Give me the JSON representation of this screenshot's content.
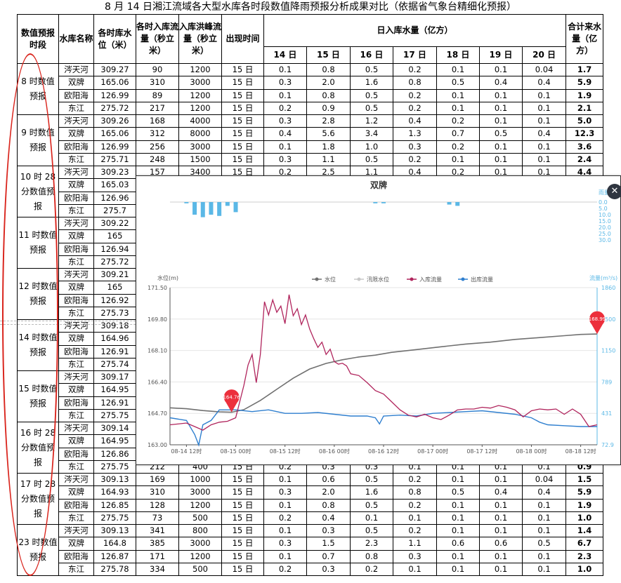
{
  "title": "8 月 14 日湘江流域各大型水库各时段数值降雨预报分析成果对比（依据省气象台精细化预报）",
  "headers": {
    "period": "数值预报时段",
    "name": "水库名称",
    "level": "各时库水位（米）",
    "inflow": "各时入库流量（秒立米）",
    "peak": "入库洪峰流量（秒立米）",
    "time": "出现时间",
    "daily": "日入库水量（亿方）",
    "days": [
      "14 日",
      "15 日",
      "16 日",
      "17 日",
      "18 日",
      "19 日",
      "20 日"
    ],
    "total": "合计来水量（亿方）"
  },
  "groups": [
    {
      "period": "8 时数值预报",
      "rows": [
        [
          "涔天河",
          "309.27",
          "90",
          "1200",
          "15 日",
          "0.1",
          "0.8",
          "0.5",
          "0.2",
          "0.1",
          "0.1",
          "0.04",
          "1.7"
        ],
        [
          "双牌",
          "165.06",
          "310",
          "3000",
          "15 日",
          "0.3",
          "2.0",
          "1.6",
          "0.8",
          "0.5",
          "0.4",
          "0.4",
          "5.9"
        ],
        [
          "欧阳海",
          "126.99",
          "89",
          "1200",
          "15 日",
          "0.1",
          "0.8",
          "0.5",
          "0.2",
          "0.1",
          "0.1",
          "0.1",
          "1.9"
        ],
        [
          "东江",
          "275.72",
          "217",
          "1200",
          "15 日",
          "0.2",
          "0.9",
          "0.5",
          "0.2",
          "0.1",
          "0.1",
          "0.1",
          "2.1"
        ]
      ]
    },
    {
      "period": "9 时数值预报",
      "rows": [
        [
          "涔天河",
          "309.26",
          "168",
          "4000",
          "15 日",
          "0.3",
          "2.8",
          "1.2",
          "0.4",
          "0.2",
          "0.1",
          "0.1",
          "5.0"
        ],
        [
          "双牌",
          "165.06",
          "312",
          "8000",
          "15 日",
          "0.4",
          "5.6",
          "3.4",
          "1.3",
          "0.7",
          "0.5",
          "0.4",
          "12.3"
        ],
        [
          "欧阳海",
          "126.99",
          "256",
          "3000",
          "15 日",
          "0.1",
          "1.8",
          "1.0",
          "0.3",
          "0.2",
          "0.1",
          "0.1",
          "3.6"
        ],
        [
          "东江",
          "275.71",
          "248",
          "1500",
          "15 日",
          "0.3",
          "1.1",
          "0.5",
          "0.2",
          "0.1",
          "0.1",
          "0.1",
          "2.4"
        ]
      ]
    },
    {
      "period": "10 时 28 分数值预报",
      "rows": [
        [
          "涔天河",
          "309.23",
          "157",
          "3400",
          "15 日",
          "0.2",
          "2.5",
          "1.1",
          "0.4",
          "0.2",
          "0.1",
          "0.1",
          "4.4"
        ],
        [
          "双牌",
          "165.03",
          "",
          "",
          "",
          "",
          "",
          "",
          "",
          "",
          "",
          "",
          ""
        ],
        [
          "欧阳海",
          "126.96",
          "",
          "",
          "",
          "",
          "",
          "",
          "",
          "",
          "",
          "",
          ""
        ],
        [
          "东江",
          "275.7",
          "",
          "",
          "",
          "",
          "",
          "",
          "",
          "",
          "",
          "",
          ""
        ]
      ]
    },
    {
      "period": "11 时数值预报",
      "rows": [
        [
          "涔天河",
          "309.22",
          "",
          "",
          "",
          "",
          "",
          "",
          "",
          "",
          "",
          "",
          ""
        ],
        [
          "双牌",
          "165",
          "",
          "",
          "",
          "",
          "",
          "",
          "",
          "",
          "",
          "",
          ""
        ],
        [
          "欧阳海",
          "126.94",
          "",
          "",
          "",
          "",
          "",
          "",
          "",
          "",
          "",
          "",
          ""
        ],
        [
          "东江",
          "275.72",
          "",
          "",
          "",
          "",
          "",
          "",
          "",
          "",
          "",
          "",
          ""
        ]
      ]
    },
    {
      "period": "12 时数值预报",
      "rows": [
        [
          "涔天河",
          "309.21",
          "",
          "",
          "",
          "",
          "",
          "",
          "",
          "",
          "",
          "",
          ""
        ],
        [
          "双牌",
          "165",
          "",
          "",
          "",
          "",
          "",
          "",
          "",
          "",
          "",
          "",
          ""
        ],
        [
          "欧阳海",
          "126.92",
          "",
          "",
          "",
          "",
          "",
          "",
          "",
          "",
          "",
          "",
          ""
        ],
        [
          "东江",
          "275.73",
          "",
          "",
          "",
          "",
          "",
          "",
          "",
          "",
          "",
          "",
          ""
        ]
      ]
    },
    {
      "period": "14 时数值预报",
      "rows": [
        [
          "涔天河",
          "309.18",
          "",
          "",
          "",
          "",
          "",
          "",
          "",
          "",
          "",
          "",
          ""
        ],
        [
          "双牌",
          "164.96",
          "",
          "",
          "",
          "",
          "",
          "",
          "",
          "",
          "",
          "",
          ""
        ],
        [
          "欧阳海",
          "126.91",
          "",
          "",
          "",
          "",
          "",
          "",
          "",
          "",
          "",
          "",
          ""
        ],
        [
          "东江",
          "275.74",
          "",
          "",
          "",
          "",
          "",
          "",
          "",
          "",
          "",
          "",
          ""
        ]
      ]
    },
    {
      "period": "15 时数值预报",
      "rows": [
        [
          "涔天河",
          "309.17",
          "",
          "",
          "",
          "",
          "",
          "",
          "",
          "",
          "",
          "",
          ""
        ],
        [
          "双牌",
          "164.95",
          "",
          "",
          "",
          "",
          "",
          "",
          "",
          "",
          "",
          "",
          ""
        ],
        [
          "欧阳海",
          "126.91",
          "",
          "",
          "",
          "",
          "",
          "",
          "",
          "",
          "",
          "",
          ""
        ],
        [
          "东江",
          "275.75",
          "",
          "",
          "",
          "",
          "",
          "",
          "",
          "",
          "",
          "",
          ""
        ]
      ]
    },
    {
      "period": "16 时 28 分数值预报",
      "rows": [
        [
          "涔天河",
          "309.14",
          "",
          "",
          "",
          "",
          "",
          "",
          "",
          "",
          "",
          "",
          ""
        ],
        [
          "双牌",
          "164.95",
          "",
          "",
          "",
          "",
          "",
          "",
          "",
          "",
          "",
          "",
          ""
        ],
        [
          "欧阳海",
          "126.86",
          "",
          "",
          "",
          "",
          "",
          "",
          "",
          "",
          "",
          "",
          ""
        ],
        [
          "东江",
          "275.75",
          "212",
          "400",
          "15 日",
          "0.2",
          "0.3",
          "0.3",
          "0.1",
          "0.1",
          "0.1",
          "0.1",
          "0.9"
        ]
      ]
    },
    {
      "period": "17 时 28 分数值预报",
      "rows": [
        [
          "涔天河",
          "309.13",
          "169",
          "1000",
          "15 日",
          "0.1",
          "0.6",
          "0.5",
          "0.2",
          "0.1",
          "0.1",
          "0.04",
          "1.5"
        ],
        [
          "双牌",
          "164.93",
          "310",
          "3000",
          "15 日",
          "0.3",
          "2.0",
          "1.6",
          "0.8",
          "0.5",
          "0.4",
          "0.4",
          "5.9"
        ],
        [
          "欧阳海",
          "126.85",
          "128",
          "1200",
          "15 日",
          "0.1",
          "0.8",
          "0.5",
          "0.2",
          "0.1",
          "0.1",
          "0.1",
          "1.9"
        ],
        [
          "东江",
          "275.75",
          "73",
          "500",
          "15 日",
          "0.2",
          "0.4",
          "0.1",
          "0.1",
          "0.1",
          "0.1",
          "0.1",
          "1.0"
        ]
      ]
    },
    {
      "period": "23 时数值预报",
      "rows": [
        [
          "涔天河",
          "309.13",
          "341",
          "800",
          "15 日",
          "0.1",
          "0.3",
          "0.5",
          "0.2",
          "0.1",
          "0.1",
          "0.1",
          "1.4"
        ],
        [
          "双牌",
          "164.8",
          "385",
          "3000",
          "15 日",
          "0.3",
          "1.5",
          "2.3",
          "1.1",
          "0.6",
          "0.6",
          "0.5",
          "6.7"
        ],
        [
          "欧阳海",
          "126.87",
          "171",
          "1200",
          "15 日",
          "0.1",
          "0.7",
          "0.8",
          "0.3",
          "0.1",
          "0.1",
          "0.1",
          "2.3"
        ],
        [
          "东江",
          "275.78",
          "334",
          "500",
          "15 日",
          "0.2",
          "0.3",
          "0.2",
          "0.1",
          "0.1",
          "0.1",
          "0.1",
          "1.0"
        ]
      ]
    }
  ],
  "popup": {
    "close_icon": "close-icon",
    "chart_data": {
      "type": "line",
      "title": "双牌",
      "rain_axis_label": "雨量",
      "ylabel_left": "水位(m)",
      "ylabel_right": "流量(m³/s)",
      "legend": [
        "水位",
        "汛限水位",
        "入库流量",
        "出库流量"
      ],
      "legend_placement": "top",
      "grid": true,
      "colors": {
        "level": "#707070",
        "flood_limit": "#c8c8c8",
        "inflow": "#b0245c",
        "outflow": "#2f7fcf",
        "rain": "#5bb8e6",
        "marker": "#ec2f3c"
      },
      "x_ticks": [
        "08-14 12时",
        "08-15 00时",
        "08-15 12时",
        "08-16 00时",
        "08-16 12时",
        "08-17 00时",
        "08-17 12时",
        "08-18 00时",
        "08-18 12时"
      ],
      "x_range_hours": [
        -4,
        100
      ],
      "y_left_ticks": [
        "163.00",
        "164.70",
        "166.40",
        "168.10",
        "169.80",
        "171.50"
      ],
      "y_left_range": [
        163.0,
        171.5
      ],
      "y_right_ticks": [
        "72.9",
        "431",
        "789",
        "1150",
        "1500",
        "1860"
      ],
      "y_right_range": [
        72.9,
        1860
      ],
      "rain_ticks": [
        "0.0",
        "5.0",
        "10.0",
        "15.0",
        "20.0",
        "25.0",
        "30.0"
      ],
      "rain_range": [
        0,
        30
      ],
      "markers": [
        {
          "label": "164.76",
          "t": 11,
          "value": 164.76
        },
        {
          "label": "168.99",
          "t": 100,
          "value": 168.99
        }
      ],
      "rain": [
        [
          0,
          1
        ],
        [
          2,
          10
        ],
        [
          4,
          12
        ],
        [
          6,
          10
        ],
        [
          8,
          11
        ],
        [
          10,
          3
        ],
        [
          12,
          8
        ],
        [
          46,
          1
        ],
        [
          48,
          1
        ],
        [
          64,
          2
        ],
        [
          66,
          3
        ]
      ],
      "level": [
        [
          -4,
          165.0
        ],
        [
          0,
          164.95
        ],
        [
          4,
          164.85
        ],
        [
          8,
          164.78
        ],
        [
          11,
          164.76
        ],
        [
          14,
          164.9
        ],
        [
          18,
          165.4
        ],
        [
          22,
          166.0
        ],
        [
          26,
          166.6
        ],
        [
          30,
          167.1
        ],
        [
          34,
          167.4
        ],
        [
          38,
          167.6
        ],
        [
          42,
          167.75
        ],
        [
          46,
          167.85
        ],
        [
          50,
          168.0
        ],
        [
          56,
          168.15
        ],
        [
          62,
          168.3
        ],
        [
          68,
          168.45
        ],
        [
          74,
          168.55
        ],
        [
          80,
          168.7
        ],
        [
          86,
          168.8
        ],
        [
          92,
          168.9
        ],
        [
          96,
          168.97
        ],
        [
          100,
          168.99
        ]
      ],
      "inflow": [
        [
          -4,
          300
        ],
        [
          0,
          320
        ],
        [
          2,
          280
        ],
        [
          4,
          240
        ],
        [
          6,
          300
        ],
        [
          8,
          330
        ],
        [
          10,
          340
        ],
        [
          12,
          380
        ],
        [
          14,
          750
        ],
        [
          15,
          980
        ],
        [
          16,
          1100
        ],
        [
          17,
          780
        ],
        [
          18,
          1100
        ],
        [
          19,
          1700
        ],
        [
          20,
          1550
        ],
        [
          21,
          1720
        ],
        [
          22,
          1580
        ],
        [
          23,
          1650
        ],
        [
          24,
          1450
        ],
        [
          25,
          1780
        ],
        [
          26,
          1540
        ],
        [
          27,
          1620
        ],
        [
          28,
          1440
        ],
        [
          29,
          1550
        ],
        [
          30,
          1390
        ],
        [
          31,
          1280
        ],
        [
          32,
          1180
        ],
        [
          33,
          1240
        ],
        [
          34,
          1100
        ],
        [
          35,
          1160
        ],
        [
          36,
          1020
        ],
        [
          37,
          990
        ],
        [
          38,
          1000
        ],
        [
          39,
          970
        ],
        [
          40,
          880
        ],
        [
          42,
          860
        ],
        [
          44,
          780
        ],
        [
          46,
          690
        ],
        [
          48,
          650
        ],
        [
          50,
          560
        ],
        [
          52,
          470
        ],
        [
          54,
          410
        ],
        [
          56,
          390
        ],
        [
          58,
          420
        ],
        [
          60,
          380
        ],
        [
          62,
          360
        ],
        [
          64,
          410
        ],
        [
          66,
          470
        ],
        [
          68,
          480
        ],
        [
          70,
          480
        ],
        [
          72,
          500
        ],
        [
          74,
          490
        ],
        [
          76,
          520
        ],
        [
          78,
          500
        ],
        [
          80,
          470
        ],
        [
          82,
          390
        ],
        [
          84,
          460
        ],
        [
          86,
          480
        ],
        [
          88,
          470
        ],
        [
          90,
          480
        ],
        [
          92,
          420
        ],
        [
          94,
          480
        ],
        [
          96,
          420
        ],
        [
          98,
          280
        ],
        [
          100,
          300
        ]
      ],
      "outflow": [
        [
          -4,
          380
        ],
        [
          0,
          350
        ],
        [
          2,
          190
        ],
        [
          3,
          70
        ],
        [
          4,
          300
        ],
        [
          6,
          350
        ],
        [
          8,
          470
        ],
        [
          12,
          470
        ],
        [
          16,
          450
        ],
        [
          20,
          470
        ],
        [
          24,
          430
        ],
        [
          28,
          430
        ],
        [
          32,
          440
        ],
        [
          36,
          420
        ],
        [
          40,
          400
        ],
        [
          44,
          400
        ],
        [
          46,
          380
        ],
        [
          47,
          310
        ],
        [
          48,
          400
        ],
        [
          52,
          410
        ],
        [
          56,
          400
        ],
        [
          60,
          430
        ],
        [
          64,
          440
        ],
        [
          68,
          450
        ],
        [
          72,
          460
        ],
        [
          76,
          440
        ],
        [
          80,
          420
        ],
        [
          84,
          380
        ],
        [
          86,
          330
        ],
        [
          88,
          300
        ],
        [
          92,
          290
        ],
        [
          96,
          280
        ],
        [
          100,
          280
        ]
      ]
    }
  }
}
